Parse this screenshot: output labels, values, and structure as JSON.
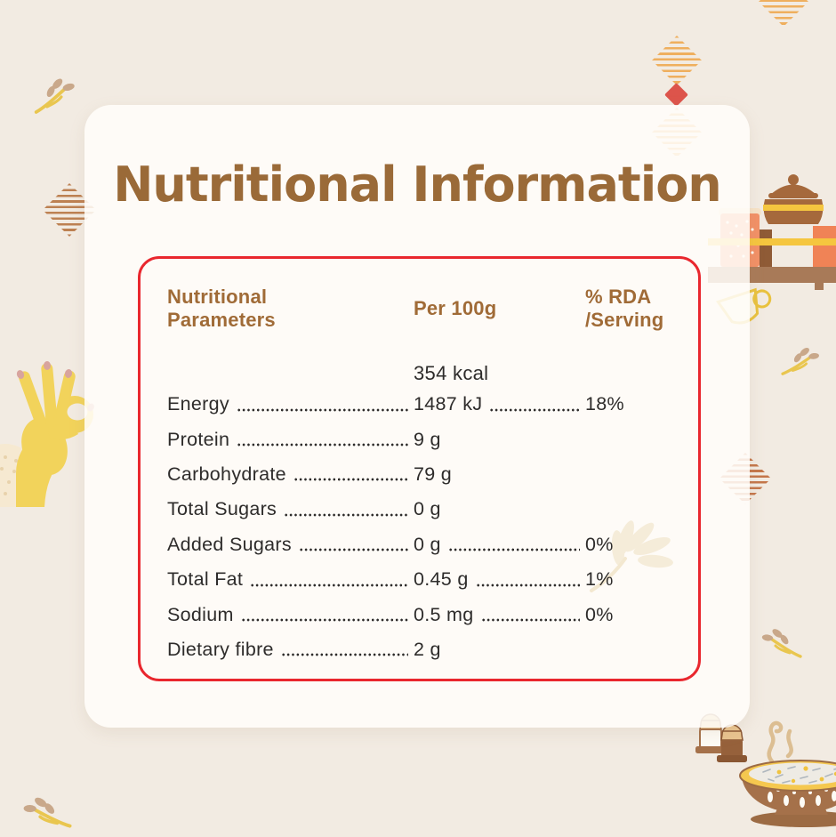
{
  "title": "Nutritional Information",
  "table": {
    "header": {
      "col1": "Nutritional\nParameters",
      "col2": "Per 100g",
      "col3": "% RDA\n/Serving"
    },
    "subheader": "354 kcal",
    "rows": [
      {
        "label": "Energy",
        "value": "1487 kJ",
        "rda": "18%"
      },
      {
        "label": "Protein",
        "value": "9 g",
        "rda": ""
      },
      {
        "label": "Carbohydrate",
        "value": "79 g",
        "rda": ""
      },
      {
        "label": "Total Sugars",
        "value": "0 g",
        "rda": ""
      },
      {
        "label": "Added Sugars",
        "value": "0 g",
        "rda": "0%"
      },
      {
        "label": "Total Fat",
        "value": "0.45 g",
        "rda": "1%"
      },
      {
        "label": "Sodium",
        "value": "0.5 mg",
        "rda": "0%"
      },
      {
        "label": "Dietary fibre",
        "value": "2 g",
        "rda": ""
      }
    ]
  },
  "colors": {
    "background": "#F2EBE2",
    "card": "#FDFBF7",
    "title_brown": "#9A6A38",
    "header_brown": "#A06B37",
    "table_border_red": "#E9272E",
    "text_dark": "#2E2C2B",
    "accent_yellow": "#F2D35B",
    "accent_orange": "#EFAF5E",
    "accent_rust": "#C0794C",
    "red_diamond": "#DD544B",
    "bowl_brown": "#A5714A",
    "rim_yellow": "#F5C84F"
  },
  "decorations": [
    "striped-diamond-icon",
    "red-diamond-icon",
    "sprig-leaf-icon",
    "ok-hand-icon",
    "kitchen-shelf-icon",
    "salt-shaker-icon",
    "pepper-shaker-icon",
    "steaming-rice-bowl-icon",
    "flower-watermark-icon"
  ]
}
